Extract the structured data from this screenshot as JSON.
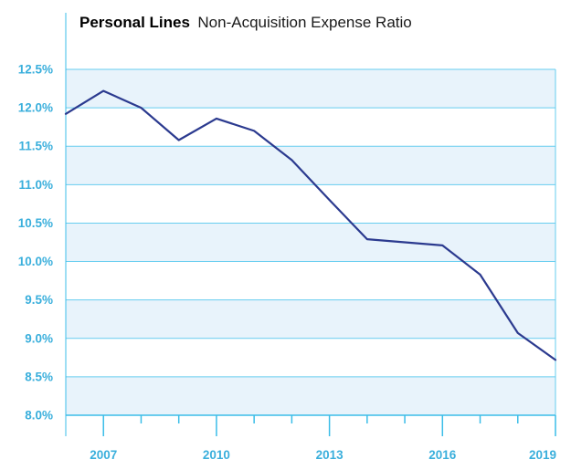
{
  "colors": {
    "band": "#e8f3fb",
    "gridline": "#66cdef",
    "axis": "#3bbde8",
    "tick_label": "#3aafdc",
    "series_line": "#2b3a8f",
    "title": "#000000"
  },
  "chart_data": {
    "type": "line",
    "title": "Personal Lines",
    "subtitle": "Non-Acquisition Expense Ratio",
    "xlabel": "",
    "ylabel": "",
    "ylim": [
      8.0,
      12.5
    ],
    "xlim": [
      2006,
      2019
    ],
    "y_ticks": [
      8.0,
      8.5,
      9.0,
      9.5,
      10.0,
      10.5,
      11.0,
      11.5,
      12.0,
      12.5
    ],
    "y_tick_labels": [
      "8.0%",
      "8.5%",
      "9.0%",
      "9.5%",
      "10.0%",
      "10.5%",
      "11.0%",
      "11.5%",
      "12.0%",
      "12.5%"
    ],
    "x_tick_positions": [
      2007,
      2008,
      2009,
      2010,
      2011,
      2012,
      2013,
      2014,
      2015,
      2016,
      2017,
      2018,
      2019
    ],
    "x_label_values": [
      2007,
      2010,
      2013,
      2016,
      2019
    ],
    "x_tick_labels": [
      "2007",
      "2010",
      "2013",
      "2016",
      "2019"
    ],
    "grid": true,
    "legend": "none",
    "series": [
      {
        "x": [
          2006,
          2007,
          2008,
          2009,
          2010,
          2011,
          2012,
          2013,
          2014,
          2015,
          2016,
          2017,
          2018,
          2019
        ],
        "values": [
          11.92,
          12.22,
          12.0,
          11.58,
          11.86,
          11.7,
          11.32,
          10.8,
          10.29,
          10.25,
          10.21,
          9.83,
          9.07,
          8.72
        ]
      }
    ]
  }
}
